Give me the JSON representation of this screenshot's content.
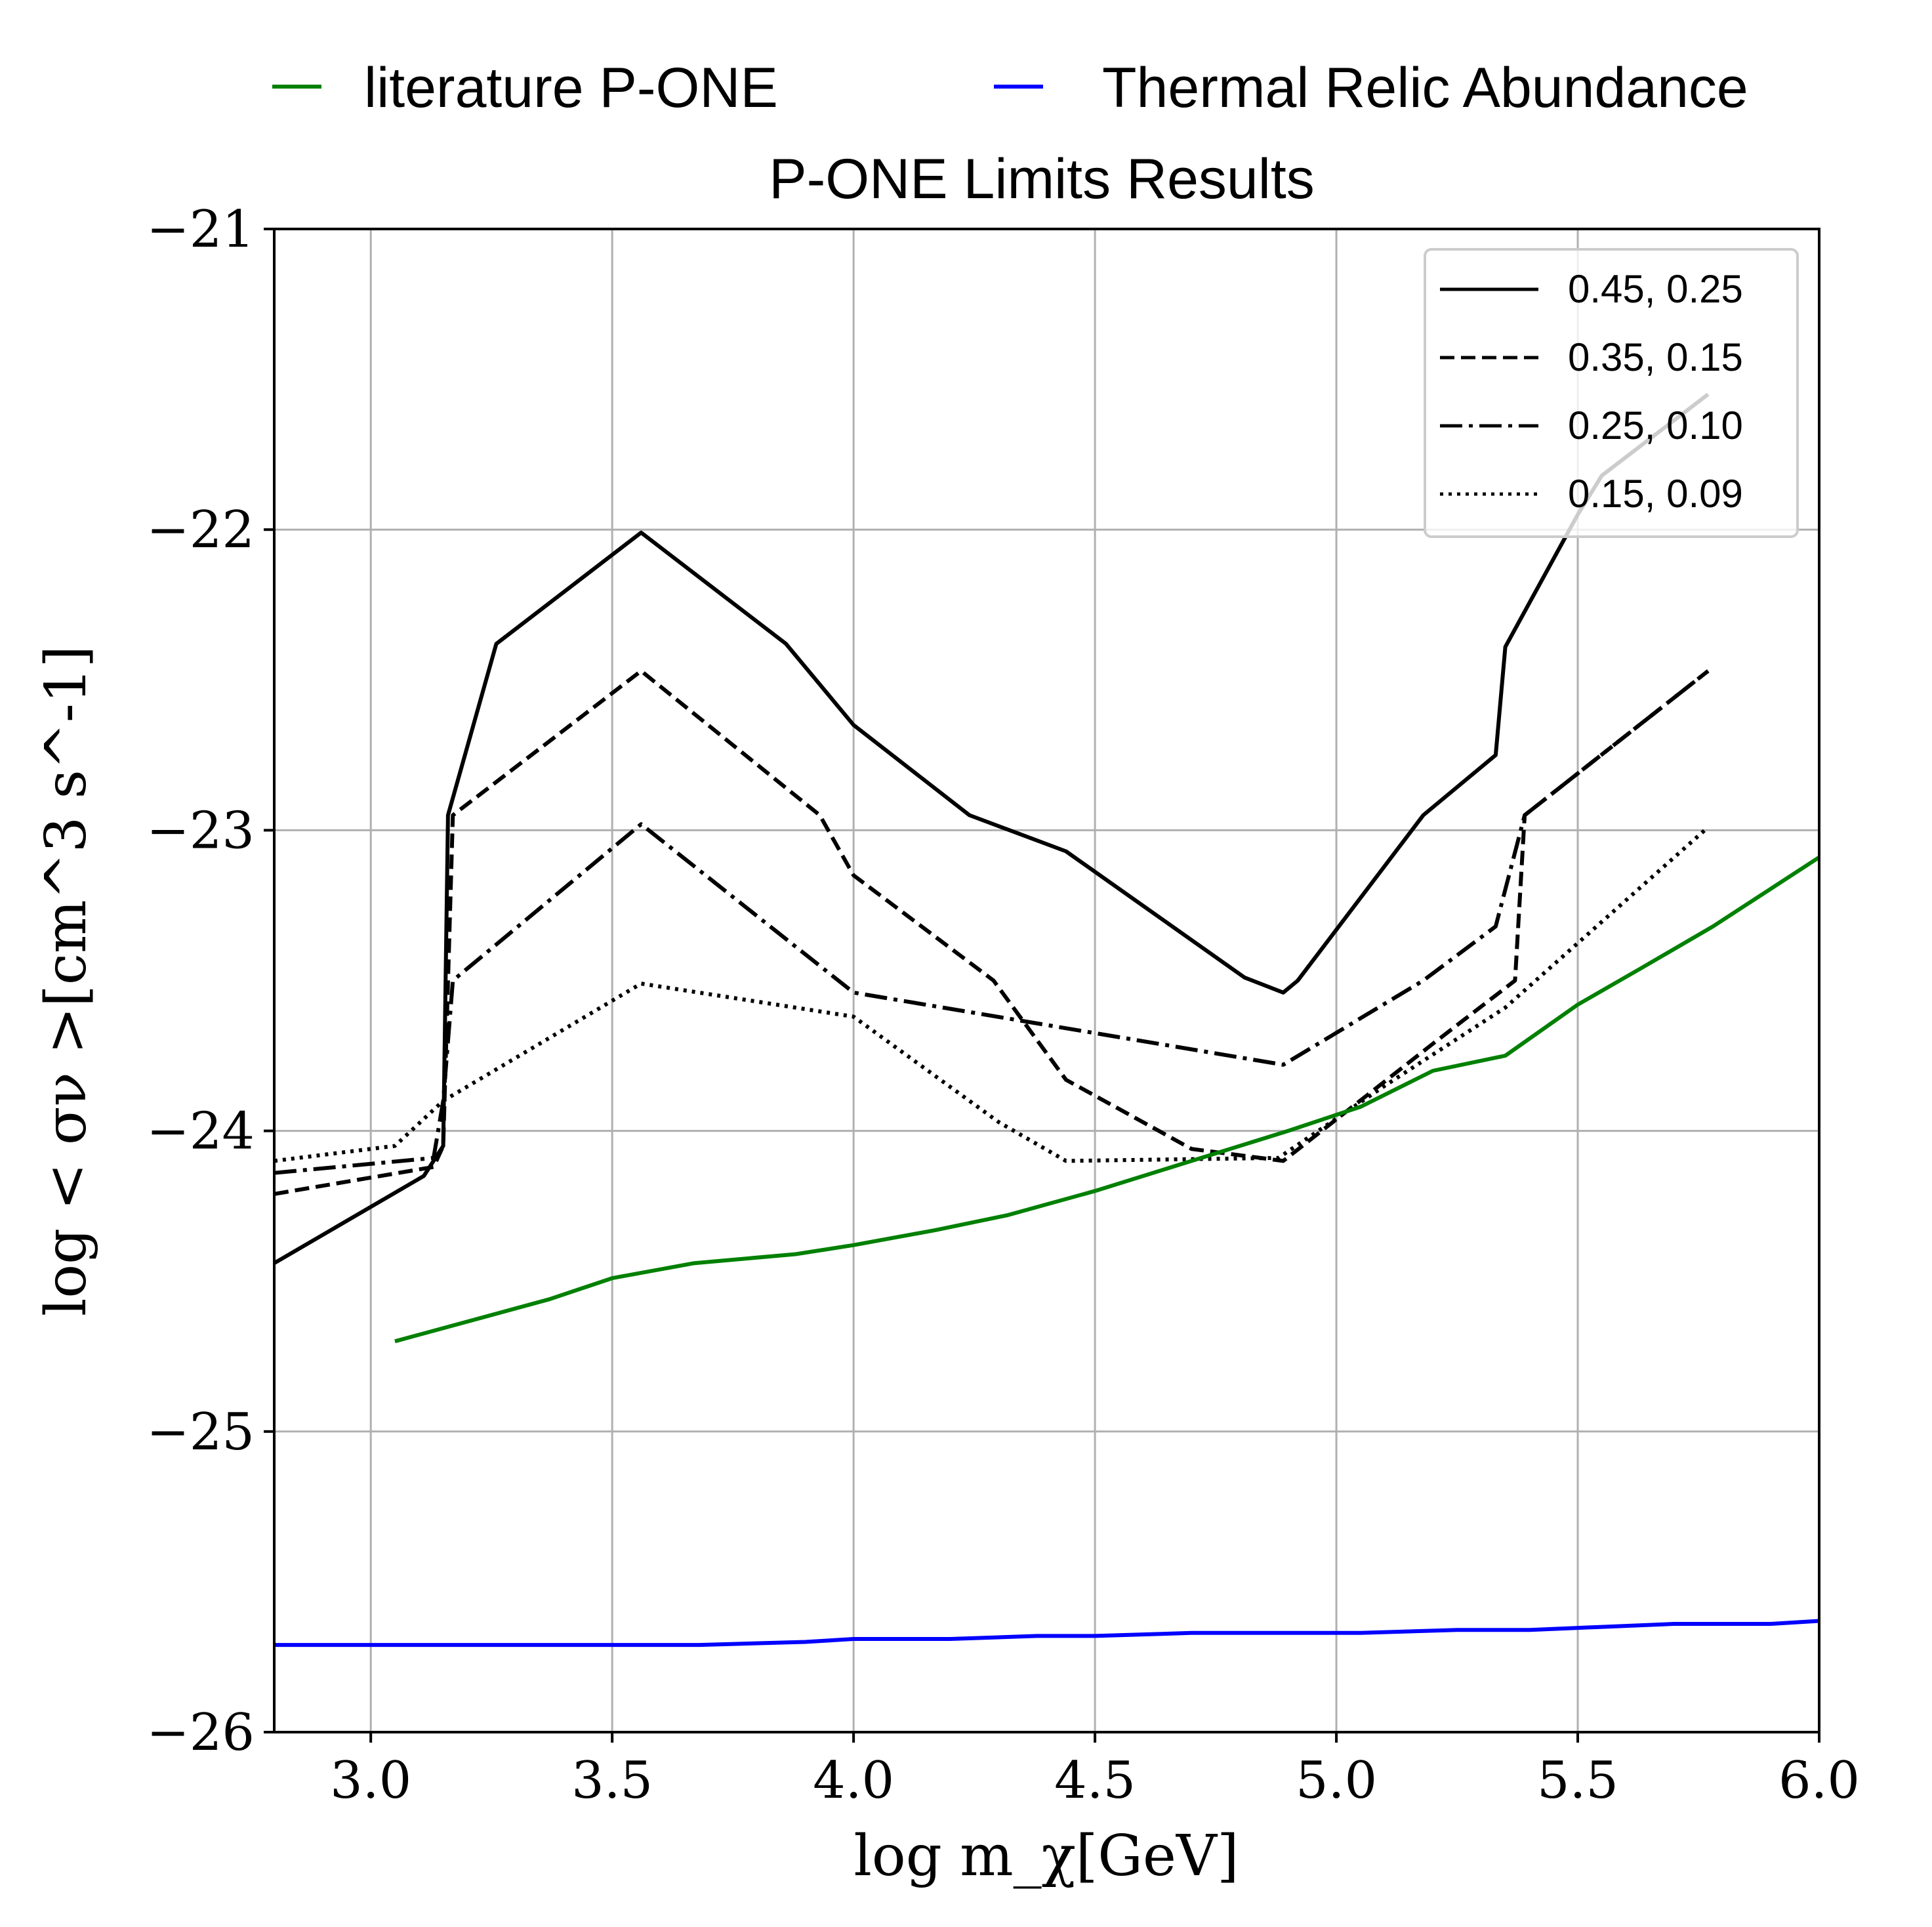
{
  "chart_data": {
    "type": "line",
    "title": "P-ONE Limits Results",
    "xlabel": "log m_χ[GeV]",
    "ylabel": "log < σν >[cm^3 s^-1]",
    "xlim": [
      2.8,
      6.0
    ],
    "ylim": [
      -26,
      -21
    ],
    "xticks": [
      "3.0",
      "3.5",
      "4.0",
      "4.5",
      "5.0",
      "5.5",
      "6.0"
    ],
    "xtick_values": [
      3.0,
      3.5,
      4.0,
      4.5,
      5.0,
      5.5,
      6.0
    ],
    "yticks": [
      "−26",
      "−25",
      "−24",
      "−23",
      "−22",
      "−21"
    ],
    "ytick_values": [
      -26,
      -25,
      -24,
      -23,
      -22,
      -21
    ],
    "grid": true,
    "top_legend": {
      "placement": "above plot",
      "entries": [
        {
          "label": "literature P-ONE",
          "color": "#008000"
        },
        {
          "label": "Thermal Relic Abundance",
          "color": "#0000ff"
        }
      ]
    },
    "inner_legend": {
      "placement": "top-right",
      "entries": [
        {
          "label": "0.45, 0.25",
          "style": "solid"
        },
        {
          "label": "0.35, 0.15",
          "style": "dashed"
        },
        {
          "label": "0.25, 0.10",
          "style": "dashdot"
        },
        {
          "label": "0.15, 0.09",
          "style": "dotted"
        }
      ]
    },
    "series": [
      {
        "name": "0.45, 0.25",
        "color": "#000000",
        "style": "solid",
        "x": [
          2.8,
          3.11,
          3.15,
          3.16,
          3.26,
          3.56,
          3.86,
          4.0,
          4.24,
          4.44,
          4.81,
          4.89,
          4.92,
          5.18,
          5.33,
          5.35,
          5.5,
          5.55,
          5.77
        ],
        "y": [
          -24.44,
          -24.15,
          -24.05,
          -22.95,
          -22.38,
          -22.01,
          -22.38,
          -22.65,
          -22.95,
          -23.07,
          -23.49,
          -23.54,
          -23.5,
          -22.95,
          -22.75,
          -22.39,
          -21.95,
          -21.82,
          -21.55
        ]
      },
      {
        "name": "0.35, 0.15",
        "color": "#000000",
        "style": "dashed",
        "x": [
          2.8,
          3.13,
          3.15,
          3.17,
          3.56,
          3.93,
          4.0,
          4.29,
          4.44,
          4.7,
          4.89,
          5.2,
          5.37,
          5.39,
          5.77
        ],
        "y": [
          -24.21,
          -24.12,
          -24.05,
          -22.95,
          -22.47,
          -22.95,
          -23.15,
          -23.5,
          -23.83,
          -24.06,
          -24.1,
          -23.71,
          -23.5,
          -22.95,
          -22.47
        ]
      },
      {
        "name": "0.25, 0.10",
        "color": "#000000",
        "style": "dashdot",
        "x": [
          2.8,
          3.13,
          3.15,
          3.17,
          3.56,
          4.0,
          4.89,
          5.18,
          5.33,
          5.39,
          5.77
        ],
        "y": [
          -24.14,
          -24.09,
          -23.9,
          -23.5,
          -22.98,
          -23.54,
          -23.78,
          -23.5,
          -23.32,
          -22.95,
          -22.47
        ]
      },
      {
        "name": "0.15, 0.09",
        "color": "#000000",
        "style": "dotted",
        "x": [
          2.8,
          3.05,
          3.15,
          3.56,
          4.0,
          4.3,
          4.44,
          4.88,
          5.1,
          5.35,
          5.77
        ],
        "y": [
          -24.1,
          -24.05,
          -23.9,
          -23.51,
          -23.62,
          -23.97,
          -24.1,
          -24.09,
          -23.85,
          -23.59,
          -22.99
        ]
      },
      {
        "name": "literature P-ONE",
        "color": "#008000",
        "style": "solid",
        "x": [
          3.05,
          3.37,
          3.5,
          3.67,
          3.88,
          4.0,
          4.17,
          4.32,
          4.5,
          4.7,
          4.9,
          5.05,
          5.2,
          5.35,
          5.5,
          5.63,
          5.78,
          6.0
        ],
        "y": [
          -24.7,
          -24.56,
          -24.49,
          -24.44,
          -24.41,
          -24.38,
          -24.33,
          -24.28,
          -24.2,
          -24.1,
          -24.0,
          -23.92,
          -23.8,
          -23.75,
          -23.58,
          -23.46,
          -23.32,
          -23.09
        ]
      },
      {
        "name": "Thermal Relic Abundance",
        "color": "#0000ff",
        "style": "solid",
        "x": [
          2.8,
          3.2,
          3.5,
          3.68,
          3.9,
          4.0,
          4.2,
          4.38,
          4.5,
          4.7,
          4.9,
          5.05,
          5.25,
          5.4,
          5.55,
          5.7,
          5.9,
          6.0
        ],
        "y": [
          -25.71,
          -25.71,
          -25.71,
          -25.71,
          -25.7,
          -25.69,
          -25.69,
          -25.68,
          -25.68,
          -25.67,
          -25.67,
          -25.67,
          -25.66,
          -25.66,
          -25.65,
          -25.64,
          -25.64,
          -25.63
        ]
      }
    ]
  }
}
